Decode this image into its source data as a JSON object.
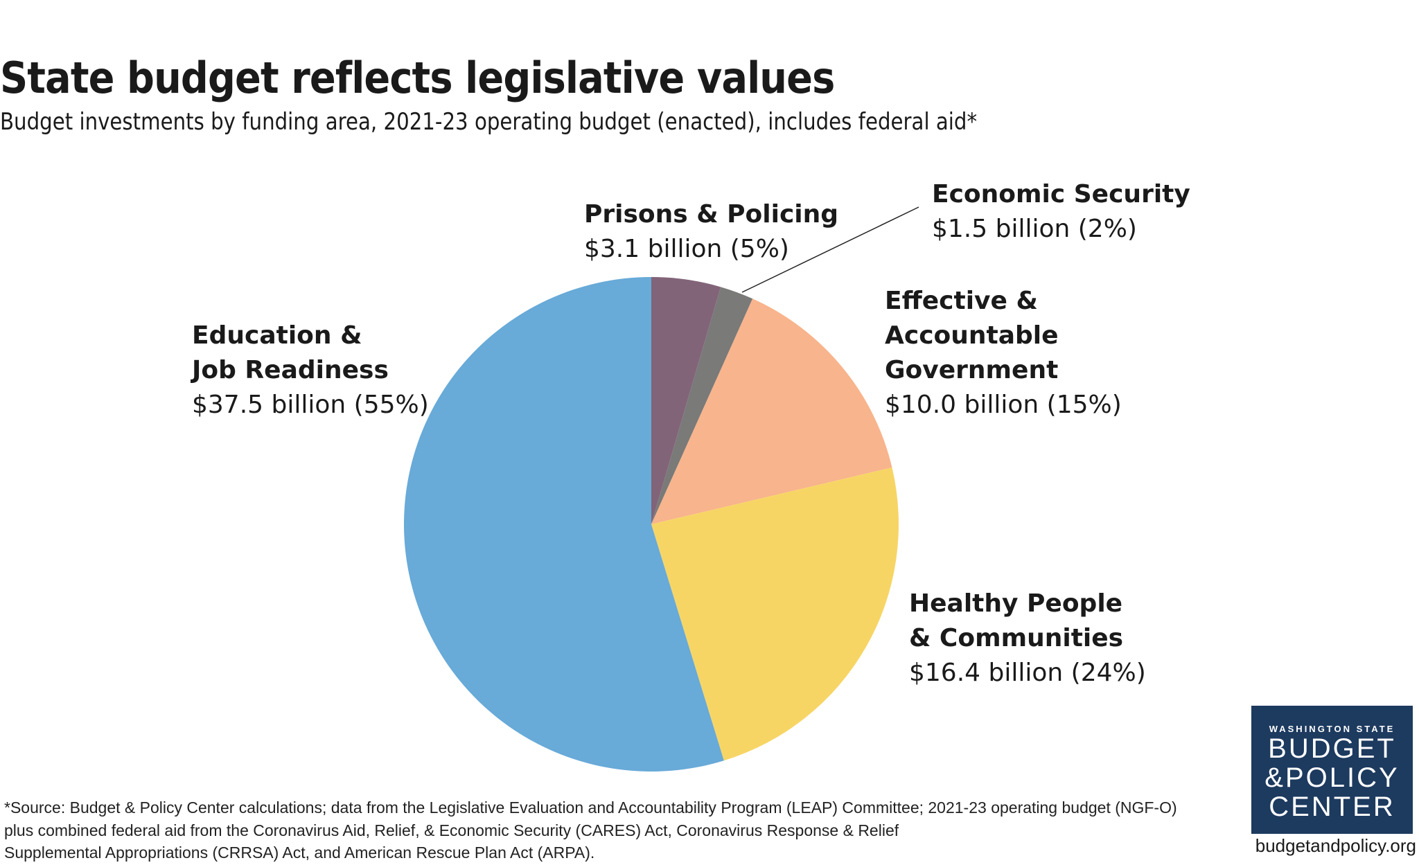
{
  "chart_data": {
    "type": "pie",
    "title": "State budget reflects legislative values",
    "subtitle": "Budget investments by funding area, 2021-23 operating budget (enacted), includes federal aid*",
    "categories": [
      "Prisons & Policing",
      "Economic Security",
      "Effective &\nAccountable\nGovernment",
      "Healthy People\n& Communities",
      "Education &\nJob Readiness"
    ],
    "values": [
      3.1,
      1.5,
      10.0,
      16.4,
      37.5
    ],
    "value_labels": [
      "$3.1 billion (5%)",
      "$1.5 billion (2%)",
      "$10.0 billion (15%)",
      "$16.4 billion (24%)",
      "$37.5 billion (55%)"
    ],
    "colors": [
      "#826479",
      "#7a7a78",
      "#f8b48c",
      "#f7d565",
      "#68aad8"
    ],
    "note": "*Source: Budget & Policy Center calculations; data from the Legislative Evaluation and Accountability Program (LEAP) Committee; 2021-23 operating budget (NGF-O)\nplus combined federal aid from the Coronavirus Aid, Relief, & Economic Security (CARES) Act, Coronavirus Response & Relief\nSupplemental Appropriations (CRRSA) Act, and American Rescue Plan Act (ARPA)."
  },
  "branding": {
    "logo": [
      "WASHINGTON STATE",
      "BUDGET",
      "&POLICY",
      "CENTER"
    ],
    "website": "budgetandpolicy.org"
  }
}
